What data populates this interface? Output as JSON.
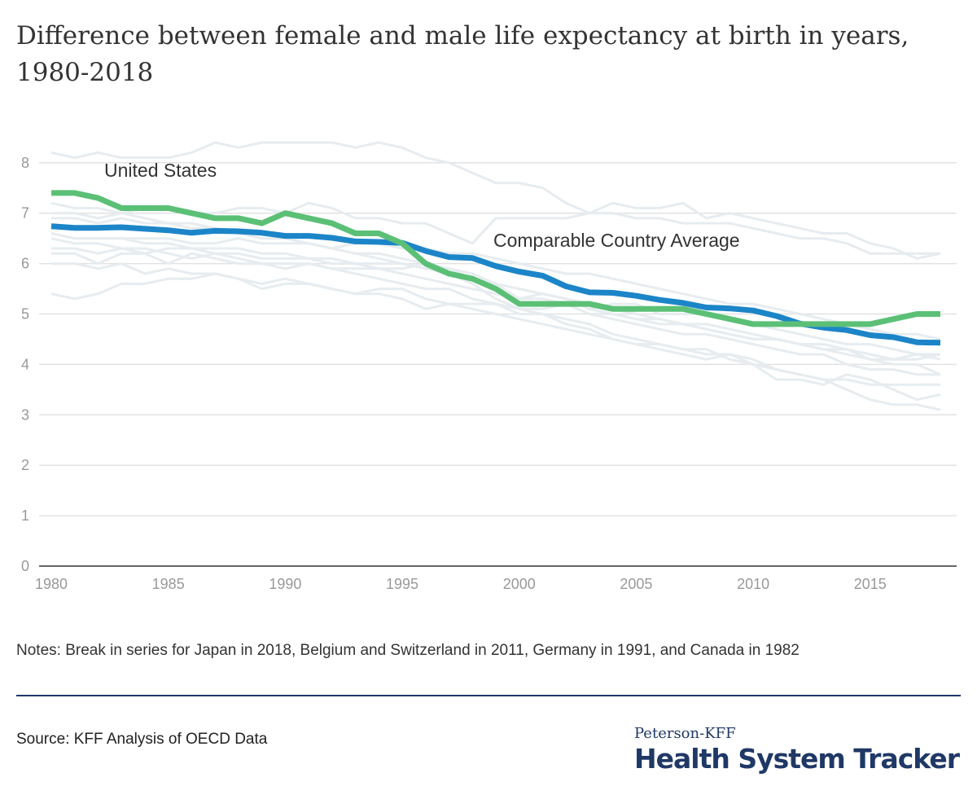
{
  "title": "Difference between female and male life expectancy at birth in years, 1980-2018",
  "notes": "Notes: Break in series for Japan in 2018, Belgium and Switzerland in 2011, Germany in 1991, and Canada in 1982",
  "source": "Source: KFF Analysis of OECD Data",
  "logo": {
    "top": "Peterson-KFF",
    "main": "Health System Tracker"
  },
  "colors": {
    "us": "#5bc076",
    "average": "#1c85c8",
    "countries": "#e6ecef",
    "grid": "#e2e2e2",
    "axis": "#333333"
  },
  "chart_data": {
    "type": "line",
    "title": "Difference between female and male life expectancy at birth in years, 1980-2018",
    "xlabel": "",
    "ylabel": "",
    "xlim": [
      1980,
      2018
    ],
    "ylim": [
      0,
      8.5
    ],
    "x_ticks": [
      1980,
      1985,
      1990,
      1995,
      2000,
      2005,
      2010,
      2015
    ],
    "y_ticks": [
      0,
      1,
      2,
      3,
      4,
      5,
      6,
      7,
      8
    ],
    "grid": true,
    "x": [
      1980,
      1981,
      1982,
      1983,
      1984,
      1985,
      1986,
      1987,
      1988,
      1989,
      1990,
      1991,
      1992,
      1993,
      1994,
      1995,
      1996,
      1997,
      1998,
      1999,
      2000,
      2001,
      2002,
      2003,
      2004,
      2005,
      2006,
      2007,
      2008,
      2009,
      2010,
      2011,
      2012,
      2013,
      2014,
      2015,
      2016,
      2017,
      2018
    ],
    "series": [
      {
        "name": "United States",
        "values": [
          7.4,
          7.4,
          7.3,
          7.1,
          7.1,
          7.1,
          7.0,
          6.9,
          6.9,
          6.8,
          7.0,
          6.9,
          6.8,
          6.6,
          6.6,
          6.4,
          6.0,
          5.8,
          5.7,
          5.5,
          5.2,
          5.2,
          5.2,
          5.2,
          5.1,
          5.1,
          5.1,
          5.1,
          5.0,
          4.9,
          4.8,
          4.8,
          4.8,
          4.8,
          4.8,
          4.8,
          4.9,
          5.0,
          5.0
        ]
      },
      {
        "name": "Comparable Country Average",
        "values": [
          6.74,
          6.71,
          6.71,
          6.72,
          6.69,
          6.66,
          6.61,
          6.65,
          6.64,
          6.61,
          6.55,
          6.55,
          6.51,
          6.44,
          6.43,
          6.41,
          6.25,
          6.13,
          6.11,
          5.95,
          5.84,
          5.76,
          5.55,
          5.43,
          5.42,
          5.36,
          5.28,
          5.22,
          5.13,
          5.11,
          5.07,
          4.96,
          4.81,
          4.73,
          4.68,
          4.58,
          4.54,
          4.44,
          4.43
        ]
      }
    ],
    "background_series": [
      [
        8.2,
        8.1,
        8.2,
        8.1,
        8.1,
        8.1,
        8.2,
        8.4,
        8.3,
        8.4,
        8.4,
        8.4,
        8.4,
        8.3,
        8.4,
        8.3,
        8.1,
        8.0,
        7.8,
        7.6,
        7.6,
        7.5,
        7.2,
        7.0,
        7.0,
        6.9,
        6.9,
        6.8,
        6.8,
        6.8,
        6.7,
        6.6,
        6.5,
        6.5,
        6.4,
        6.2,
        6.2,
        6.2,
        6.2
      ],
      [
        7.2,
        7.1,
        7.1,
        7.0,
        7.1,
        7.1,
        7.0,
        7.0,
        7.1,
        7.1,
        7.0,
        7.2,
        7.1,
        6.9,
        6.9,
        6.8,
        6.8,
        6.6,
        6.4,
        6.9,
        6.9,
        6.9,
        6.9,
        7.0,
        7.2,
        7.1,
        7.1,
        7.2,
        6.9,
        7.0,
        6.9,
        6.8,
        6.7,
        6.6,
        6.6,
        6.4,
        6.3,
        6.1,
        6.2
      ],
      [
        6.6,
        6.5,
        6.5,
        6.5,
        6.5,
        6.5,
        6.4,
        6.4,
        6.5,
        6.4,
        6.4,
        6.4,
        6.3,
        6.4,
        6.4,
        6.3,
        6.3,
        6.2,
        6.2,
        6.1,
        6.0,
        5.9,
        5.8,
        5.8,
        5.7,
        5.6,
        5.5,
        5.4,
        5.3,
        5.2,
        5.2,
        5.1,
        5.0,
        4.9,
        4.8,
        4.7,
        4.6,
        4.6,
        4.5
      ],
      [
        6.9,
        6.9,
        6.8,
        6.9,
        6.8,
        6.8,
        6.7,
        6.7,
        6.6,
        6.5,
        6.5,
        6.4,
        6.3,
        6.2,
        6.1,
        6.0,
        5.9,
        5.8,
        5.7,
        5.6,
        5.5,
        5.4,
        5.3,
        5.2,
        5.1,
        5.0,
        4.9,
        4.8,
        4.7,
        4.6,
        4.5,
        4.5,
        4.4,
        4.3,
        4.3,
        4.2,
        4.1,
        4.1,
        4.2
      ],
      [
        6.2,
        6.2,
        6.0,
        6.2,
        6.2,
        6.0,
        6.2,
        6.1,
        6.0,
        6.0,
        6.0,
        6.0,
        5.9,
        5.9,
        5.9,
        5.9,
        6.0,
        5.8,
        5.6,
        5.3,
        5.1,
        5.1,
        5.2,
        5.0,
        5.0,
        4.9,
        4.8,
        4.8,
        4.8,
        4.7,
        4.6,
        4.5,
        4.4,
        4.4,
        4.3,
        4.1,
        4.1,
        4.2,
        4.2
      ],
      [
        5.4,
        5.3,
        5.4,
        5.6,
        5.6,
        5.7,
        5.7,
        5.8,
        5.7,
        5.5,
        5.6,
        5.6,
        5.5,
        5.4,
        5.4,
        5.3,
        5.1,
        5.2,
        5.2,
        5.2,
        5.1,
        5.0,
        4.8,
        4.7,
        4.5,
        4.4,
        4.3,
        4.2,
        4.1,
        4.2,
        4.0,
        3.7,
        3.7,
        3.6,
        3.8,
        3.7,
        3.5,
        3.3,
        3.4
      ],
      [
        6.0,
        6.0,
        5.9,
        6.0,
        5.8,
        5.9,
        5.8,
        5.8,
        5.7,
        5.6,
        5.7,
        5.6,
        5.5,
        5.4,
        5.5,
        5.5,
        5.3,
        5.2,
        5.1,
        5.0,
        4.9,
        4.8,
        4.7,
        4.6,
        4.5,
        4.4,
        4.4,
        4.3,
        4.2,
        4.2,
        4.1,
        3.9,
        3.8,
        3.7,
        3.7,
        3.6,
        3.6,
        3.6,
        3.6
      ],
      [
        6.5,
        6.4,
        6.4,
        6.3,
        6.2,
        6.3,
        6.3,
        6.2,
        6.2,
        6.1,
        6.1,
        6.1,
        6.0,
        6.0,
        5.9,
        5.8,
        5.7,
        5.6,
        5.5,
        5.4,
        5.3,
        5.3,
        5.2,
        5.0,
        4.9,
        4.8,
        4.7,
        4.6,
        4.6,
        4.5,
        4.4,
        4.3,
        4.2,
        4.2,
        4.0,
        3.9,
        3.9,
        3.8,
        3.8
      ],
      [
        7.0,
        7.0,
        6.9,
        7.0,
        6.9,
        6.8,
        6.8,
        6.7,
        6.6,
        6.6,
        6.5,
        6.4,
        6.3,
        6.2,
        6.2,
        6.1,
        6.0,
        5.9,
        5.8,
        5.6,
        5.5,
        5.4,
        5.3,
        5.1,
        5.0,
        4.9,
        4.9,
        4.8,
        4.7,
        4.6,
        4.5,
        4.5,
        4.4,
        4.3,
        4.2,
        4.1,
        4.0,
        4.0,
        3.8
      ],
      [
        6.6,
        6.5,
        6.5,
        6.5,
        6.4,
        6.4,
        6.3,
        6.3,
        6.3,
        6.2,
        6.2,
        6.1,
        6.1,
        6.0,
        6.0,
        6.0,
        5.9,
        5.9,
        5.7,
        5.6,
        5.3,
        5.4,
        5.3,
        5.1,
        5.2,
        5.2,
        5.0,
        5.0,
        5.0,
        4.9,
        4.8,
        4.7,
        4.6,
        4.5,
        4.4,
        4.4,
        4.3,
        4.2,
        4.1
      ],
      [
        6.3,
        6.3,
        6.2,
        6.3,
        6.3,
        6.2,
        6.1,
        6.2,
        6.1,
        6.0,
        5.9,
        6.0,
        5.9,
        5.8,
        5.7,
        5.6,
        5.5,
        5.5,
        5.3,
        5.2,
        5.0,
        5.0,
        4.9,
        4.8,
        4.6,
        4.5,
        4.4,
        4.3,
        4.3,
        4.1,
        4.0,
        3.9,
        3.8,
        3.7,
        3.5,
        3.3,
        3.2,
        3.2,
        3.1
      ]
    ],
    "labels": [
      {
        "text": "United States"
      },
      {
        "text": "Comparable Country Average"
      }
    ]
  }
}
